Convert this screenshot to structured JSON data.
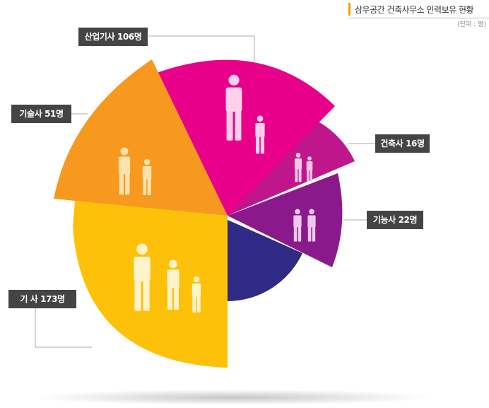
{
  "header": {
    "title": "삼우공간 건축사무소 인력보유 현황",
    "unit": "(단위 : 명)"
  },
  "labels": {
    "industrial_engineer": "산업기사  106명",
    "technician": "기술사  51명",
    "architect": "건축사 16명",
    "craftsman": "기능사 22명",
    "engineer": "기 사 173명"
  },
  "chart_data": {
    "type": "pie",
    "title": "삼우공간 건축사무소 인력보유 현황",
    "unit": "명",
    "categories": [
      "산업기사",
      "건축사",
      "기능사",
      "기 사",
      "기술사"
    ],
    "values": [
      106,
      16,
      22,
      173,
      51
    ],
    "colors": [
      "#e8008a",
      "#c0168c",
      "#8a1a8c",
      "#fdc10a",
      "#f7991e"
    ],
    "base_color": "#2e2a86"
  }
}
